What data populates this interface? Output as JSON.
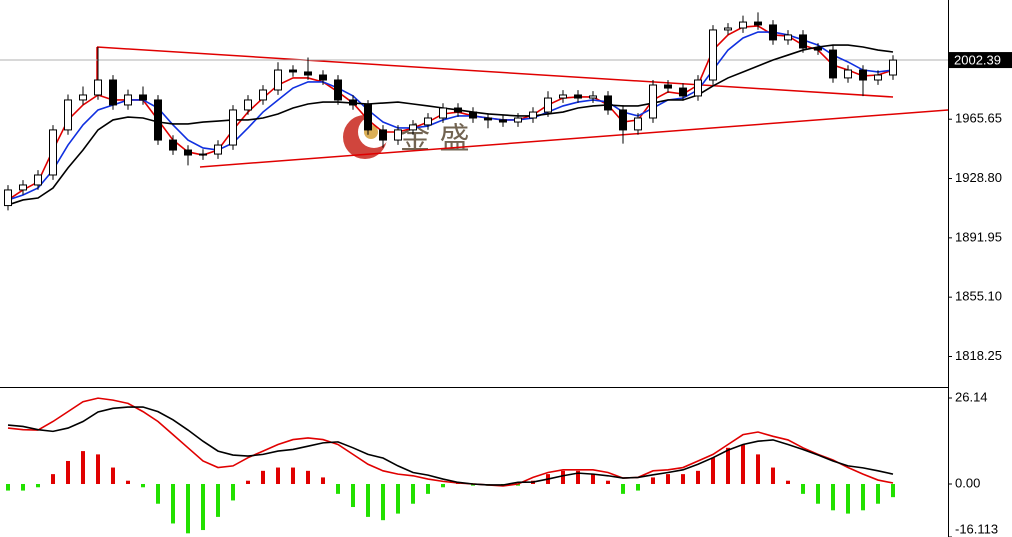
{
  "chart_data": [
    {
      "type": "candlestick",
      "open": [
        1912.0,
        1921.7,
        1924.8,
        1931.0,
        1959.0,
        1977.6,
        1980.7,
        1990.0,
        1974.5,
        1980.7,
        1977.6,
        1952.7,
        1946.5,
        1943.4,
        1944.0,
        1949.6,
        1971.4,
        1977.6,
        1983.8,
        1996.2,
        1995.0,
        1993.1,
        1990.0,
        1977.6,
        1974.5,
        1959.0,
        1952.7,
        1959.0,
        1962.1,
        1966.4,
        1972.6,
        1970.1,
        1966.4,
        1965.2,
        1963.9,
        1966.4,
        1970.1,
        1978.8,
        1980.7,
        1978.8,
        1980.1,
        1971.4,
        1959.0,
        1966.4,
        1986.9,
        1985.0,
        1980.1,
        1990.0,
        2021.1,
        2022.3,
        2026.0,
        2024.2,
        2014.9,
        2018.0,
        2009.9,
        2008.6,
        1991.3,
        1996.2,
        1990.0,
        1993.1
      ],
      "high": [
        1924.7,
        1927.8,
        1934.0,
        1962.0,
        1981.0,
        1986.0,
        2010.5,
        1993.0,
        1984.0,
        1986.0,
        1980.6,
        1955.7,
        1949.5,
        1947.0,
        1952.6,
        1974.4,
        1980.6,
        1986.8,
        2001.0,
        1999.2,
        2004.0,
        1996.1,
        1993.0,
        1980.6,
        1977.5,
        1962.0,
        1962.0,
        1965.1,
        1969.4,
        1975.6,
        1975.6,
        1973.1,
        1969.4,
        1968.2,
        1969.4,
        1973.1,
        1983.0,
        1983.7,
        1983.7,
        1983.1,
        1983.1,
        1974.4,
        1969.4,
        1990.0,
        1989.9,
        1988.0,
        1993.0,
        2024.1,
        2025.3,
        2030.0,
        2032.0,
        2027.2,
        2021.0,
        2021.0,
        2012.9,
        2011.6,
        1999.2,
        1999.2,
        1996.1,
        2005.4
      ],
      "low": [
        1909.0,
        1918.7,
        1921.8,
        1928.0,
        1956.0,
        1974.6,
        1977.7,
        1971.5,
        1971.5,
        1974.6,
        1949.7,
        1943.5,
        1937.0,
        1940.4,
        1941.0,
        1946.6,
        1968.4,
        1974.6,
        1980.8,
        1992.0,
        1990.1,
        1987.0,
        1974.6,
        1971.5,
        1956.0,
        1948.0,
        1949.7,
        1956.0,
        1959.1,
        1963.4,
        1967.1,
        1963.4,
        1960.0,
        1960.9,
        1960.9,
        1963.4,
        1967.1,
        1975.8,
        1975.8,
        1975.8,
        1968.4,
        1950.5,
        1956.0,
        1963.4,
        1982.0,
        1977.1,
        1977.1,
        1987.0,
        2018.1,
        2019.3,
        2021.2,
        2011.9,
        2011.9,
        2006.9,
        2005.6,
        1988.3,
        1988.3,
        1980.0,
        1987.0,
        1990.1
      ],
      "close": [
        1921.7,
        1924.8,
        1931.0,
        1959.0,
        1977.6,
        1980.7,
        1990.0,
        1974.5,
        1980.7,
        1977.6,
        1952.7,
        1946.5,
        1943.4,
        1944.0,
        1949.6,
        1971.4,
        1977.6,
        1983.8,
        1996.2,
        1995.0,
        1993.1,
        1990.0,
        1977.6,
        1974.5,
        1959.0,
        1952.7,
        1959.0,
        1962.1,
        1966.4,
        1972.6,
        1970.1,
        1966.4,
        1965.2,
        1963.9,
        1966.4,
        1970.1,
        1978.8,
        1980.7,
        1978.8,
        1980.1,
        1971.4,
        1959.0,
        1966.4,
        1986.9,
        1985.0,
        1980.1,
        1990.0,
        2021.1,
        2022.3,
        2026.0,
        2024.2,
        2014.9,
        2018.0,
        2009.9,
        2008.6,
        1991.3,
        1996.2,
        1990.0,
        1993.1,
        2002.39
      ],
      "up_color": "#ffffff",
      "down_color": "#000000",
      "lines": [
        {
          "color": "#e00000",
          "values": [
            1915.5,
            1921.7,
            1926.7,
            1946.5,
            1965.2,
            1974.5,
            1980.7,
            1977.6,
            1977.6,
            1977.6,
            1965.2,
            1952.7,
            1945.3,
            1943.4,
            1946.5,
            1959.0,
            1970.1,
            1978.8,
            1986.9,
            1991.3,
            1991.3,
            1988.8,
            1982.6,
            1975.7,
            1965.2,
            1957.7,
            1957.7,
            1960.2,
            1963.9,
            1968.9,
            1970.1,
            1967.7,
            1966.4,
            1965.2,
            1965.2,
            1968.3,
            1974.5,
            1978.8,
            1979.5,
            1979.5,
            1974.5,
            1963.9,
            1965.2,
            1977.6,
            1982.6,
            1981.3,
            1986.9,
            2008.6,
            2018.0,
            2022.9,
            2023.6,
            2018.0,
            2017.3,
            2011.7,
            2008.6,
            1999.3,
            1996.2,
            1992.5,
            1993.1,
            1996.2
          ]
        },
        {
          "color": "#1030e0",
          "values": [
            1915.5,
            1918.6,
            1922.9,
            1934.1,
            1949.6,
            1962.1,
            1971.4,
            1974.5,
            1977.6,
            1977.6,
            1972.6,
            1962.1,
            1952.7,
            1947.8,
            1946.5,
            1950.9,
            1960.2,
            1970.1,
            1977.6,
            1985.0,
            1988.8,
            1988.8,
            1985.0,
            1980.1,
            1971.4,
            1963.9,
            1960.2,
            1960.2,
            1961.4,
            1965.2,
            1967.7,
            1967.7,
            1966.4,
            1965.2,
            1965.2,
            1966.4,
            1970.1,
            1973.9,
            1976.3,
            1977.6,
            1976.3,
            1970.1,
            1967.7,
            1972.6,
            1977.6,
            1978.8,
            1983.8,
            1996.2,
            2008.6,
            2016.1,
            2019.8,
            2019.8,
            2018.0,
            2014.9,
            2011.7,
            2005.5,
            2001.2,
            1996.2,
            1995.0,
            1996.2
          ]
        },
        {
          "color": "#000000",
          "values": [
            1912.4,
            1915.5,
            1916.7,
            1922.9,
            1935.4,
            1946.5,
            1959.0,
            1965.2,
            1967.0,
            1966.4,
            1963.9,
            1962.7,
            1962.7,
            1963.9,
            1964.5,
            1965.2,
            1965.2,
            1966.4,
            1968.9,
            1972.6,
            1975.1,
            1976.3,
            1976.3,
            1975.7,
            1975.1,
            1975.7,
            1976.3,
            1975.1,
            1973.9,
            1972.6,
            1971.4,
            1970.1,
            1968.9,
            1968.3,
            1967.7,
            1967.7,
            1968.9,
            1970.1,
            1972.6,
            1973.9,
            1974.5,
            1973.9,
            1973.9,
            1975.7,
            1977.6,
            1977.6,
            1980.7,
            1986.3,
            1991.3,
            1995.0,
            1998.7,
            2002.4,
            2005.5,
            2008.6,
            2010.5,
            2011.7,
            2011.7,
            2010.5,
            2008.6,
            2007.4
          ]
        }
      ],
      "ylim": [
        1799.3,
        2039.7
      ],
      "yticks": [
        1818.25,
        {
          "value": 1855.1,
          "label": "1855.10"
        },
        1891.95,
        {
          "value": 1928.8,
          "label": "1928.80"
        },
        1965.65
      ],
      "current_price": 2002.39,
      "watermark": "金 盛"
    },
    {
      "type": "macd",
      "values": [
        -2,
        -2,
        -1,
        3,
        7,
        10,
        9,
        5,
        1,
        -1,
        -6,
        -12,
        -15,
        -14,
        -10,
        -5,
        1,
        4,
        5,
        5,
        4,
        2,
        -3,
        -7,
        -10,
        -11,
        -9,
        -6,
        -3,
        -1,
        0.5,
        -0.5,
        -0.5,
        -0.6,
        -0.5,
        1,
        3,
        4,
        4,
        3,
        1,
        -3,
        -2,
        2,
        3,
        3,
        4,
        8,
        11,
        12,
        9,
        5,
        1,
        -3,
        -6,
        -8,
        -9,
        -8,
        -6,
        -4
      ],
      "positive_color": "#e00000",
      "negative_color": "#22e000",
      "lines": [
        {
          "color": "#e00000",
          "values": [
            17.0,
            16.5,
            16.4,
            19,
            22,
            25,
            26.1,
            25.5,
            24.5,
            22,
            19,
            15,
            11,
            7,
            5,
            5.5,
            8,
            10,
            12,
            13.5,
            14,
            13.5,
            12,
            9,
            6,
            4,
            3,
            2.5,
            1.5,
            0.8,
            0.3,
            0,
            -0.3,
            -0.6,
            0,
            2,
            3.5,
            4.3,
            4.3,
            4.3,
            3.5,
            1.8,
            2,
            4,
            4.3,
            5,
            7,
            9,
            12,
            15,
            15.8,
            14.5,
            13.4,
            11,
            9,
            7.3,
            5,
            3,
            1.2,
            0.3
          ]
        },
        {
          "color": "#000000",
          "values": [
            17.9,
            17.5,
            16.5,
            16,
            17,
            19,
            21.9,
            23,
            23.4,
            23.4,
            22,
            19.5,
            16.4,
            13,
            10,
            8.8,
            8.5,
            9,
            10,
            10.5,
            11.5,
            12.5,
            12.8,
            11,
            9,
            7.9,
            5.5,
            3.5,
            2.7,
            1.5,
            0.5,
            0,
            -0.3,
            -0.3,
            0.5,
            0.6,
            1.5,
            2.5,
            3.3,
            3,
            2.5,
            1.8,
            2,
            2.8,
            3.5,
            4.3,
            6,
            8,
            10.3,
            12,
            13,
            13.4,
            12,
            10.5,
            8.8,
            7,
            5.5,
            4.9,
            4,
            3.0
          ]
        }
      ],
      "ylim": [
        -16.113,
        29.18
      ],
      "yticks": [
        -16.113,
        {
          "value": 0,
          "label": "0.00"
        },
        26.14
      ]
    }
  ]
}
